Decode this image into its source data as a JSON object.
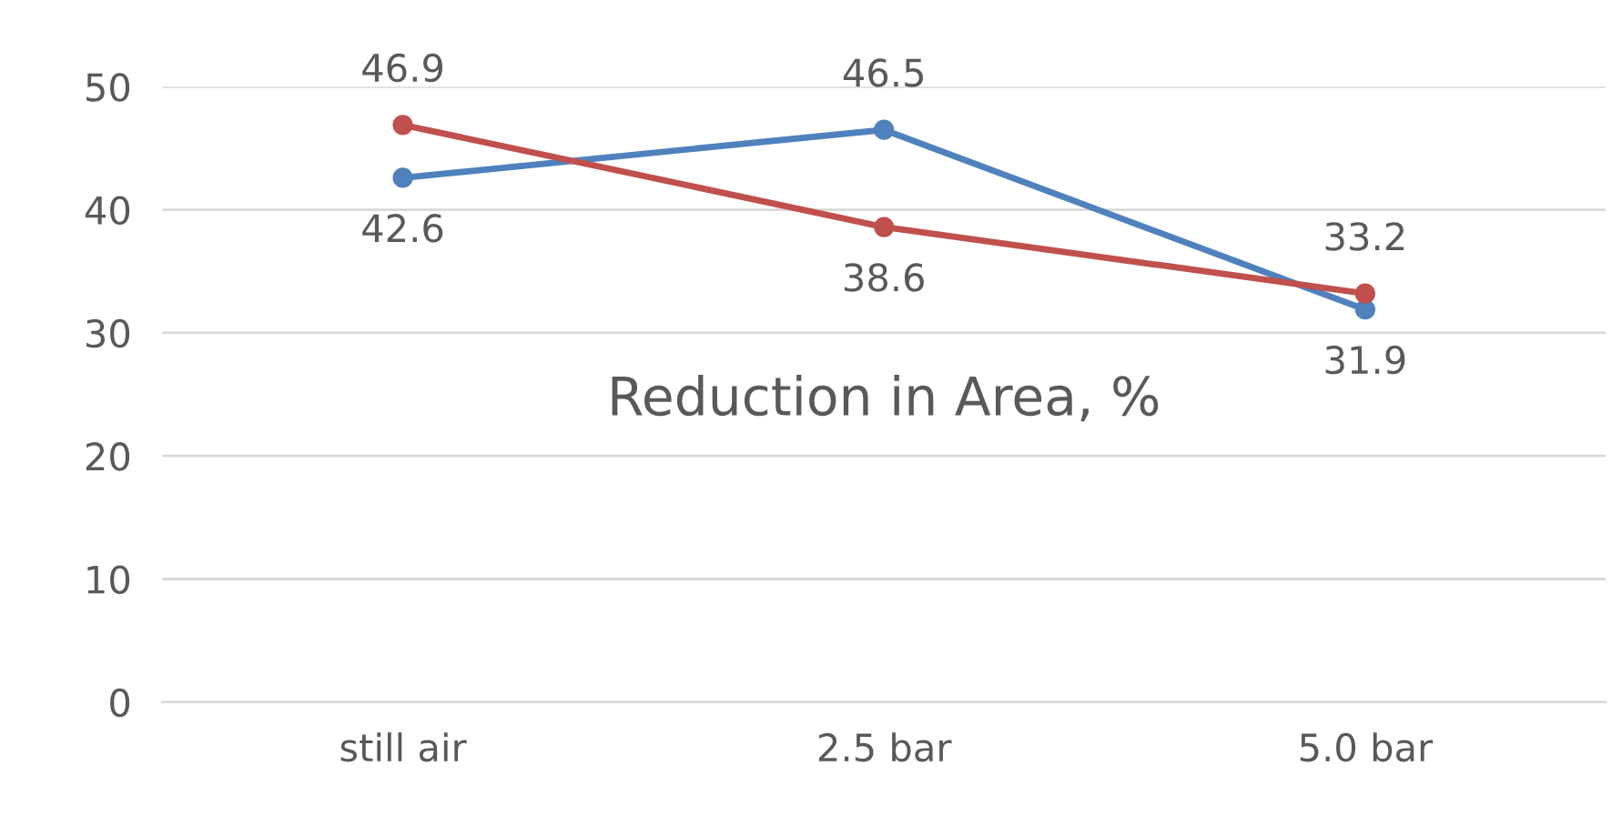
{
  "chart_data": {
    "type": "line",
    "title": "Reduction in Area, %",
    "categories": [
      "still air",
      "2.5 bar",
      "5.0 bar"
    ],
    "series": [
      {
        "color": "#4f81bd",
        "values": [
          42.6,
          46.5,
          31.9
        ]
      },
      {
        "color": "#c0504d",
        "values": [
          46.9,
          38.6,
          33.2
        ]
      }
    ],
    "ylim": [
      0,
      50
    ],
    "yticks": [
      0,
      10,
      20,
      30,
      40,
      50
    ],
    "grid": "y",
    "marker": "circle",
    "line_style": "solid",
    "data_labels": true,
    "legend": false
  }
}
